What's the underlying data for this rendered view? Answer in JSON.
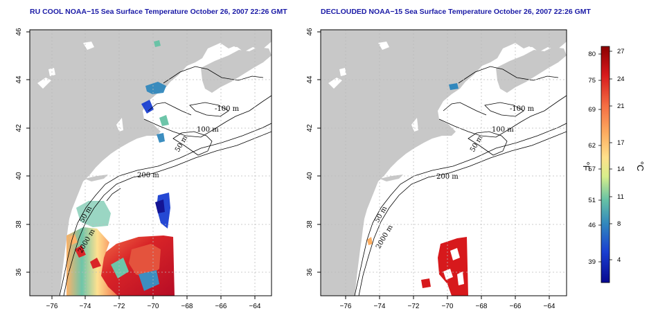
{
  "titles": {
    "left": "RU COOL NOAA−15 Sea Surface Temperature October 26, 2007 22:26 GMT",
    "right": "DECLOUDED NOAA−15 Sea Surface Temperature October 26, 2007 22:26 GMT"
  },
  "axes": {
    "x_ticks": [
      "−76",
      "−74",
      "−72",
      "−70",
      "−68",
      "−66",
      "−64"
    ],
    "y_ticks": [
      "36",
      "38",
      "40",
      "42",
      "44",
      "46"
    ]
  },
  "contours": {
    "label_100m": "100 m",
    "label_50m": "50 m",
    "label_200m": "200 m",
    "label_2000m": "2000 m",
    "label_100m_b": "-100 m"
  },
  "colorbar": {
    "fahrenheit_ticks": [
      "80",
      "75",
      "69",
      "62",
      "57",
      "51",
      "46",
      "39"
    ],
    "celsius_ticks": [
      "27",
      "24",
      "21",
      "17",
      "14",
      "11",
      "8",
      "4"
    ],
    "unit_f": "°F",
    "unit_c": "°C",
    "colors": [
      "#8b0000",
      "#d7191c",
      "#f46d43",
      "#fdae61",
      "#fee08b",
      "#d9ef8b",
      "#66c2a5",
      "#3288bd",
      "#1a3fd1",
      "#08088f"
    ]
  },
  "colors": {
    "land": "#c8c8c8",
    "title": "#1a1aa6",
    "grid": "#bbbbbb"
  }
}
